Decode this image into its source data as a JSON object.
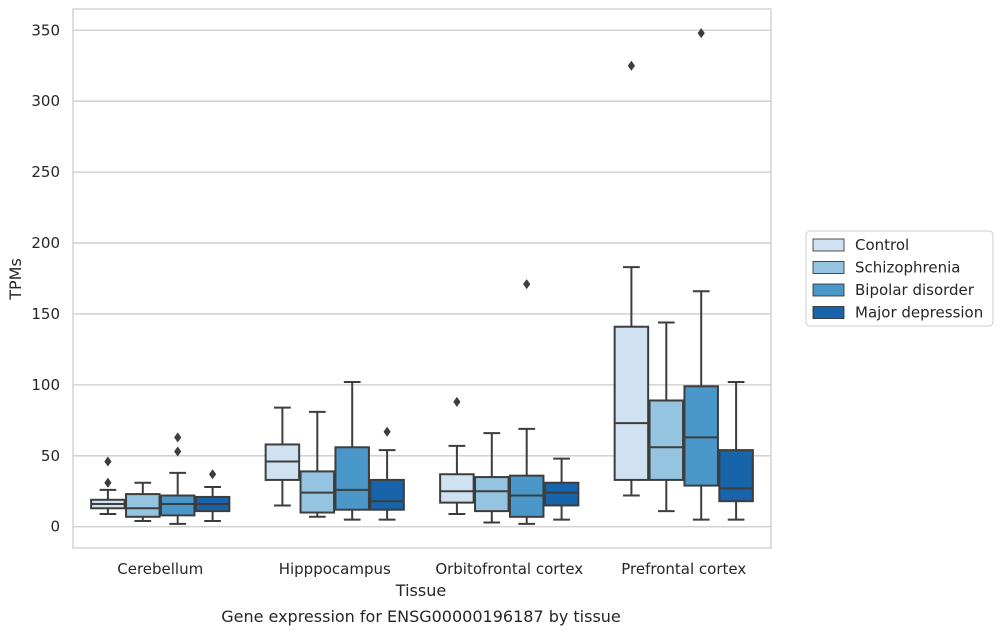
{
  "chart_data": {
    "type": "boxplot",
    "title": "",
    "caption": "Gene expression for ENSG00000196187 by tissue",
    "xlabel": "Tissue",
    "ylabel": "TPMs",
    "ylim": [
      -15,
      365
    ],
    "yticks": [
      0,
      50,
      100,
      150,
      200,
      250,
      300,
      350
    ],
    "grid": "horizontal",
    "legend_position": "right",
    "categories": [
      "Cerebellum",
      "Hipppocampus",
      "Orbitofrontal cortex",
      "Prefrontal cortex"
    ],
    "series": [
      {
        "name": "Control",
        "color": "#d0e1f2",
        "boxes": [
          {
            "whisker_low": 9,
            "q1": 13,
            "median": 16,
            "q3": 19,
            "whisker_high": 26,
            "outliers": [
              31,
              46
            ]
          },
          {
            "whisker_low": 15,
            "q1": 33,
            "median": 46,
            "q3": 58,
            "whisker_high": 84,
            "outliers": []
          },
          {
            "whisker_low": 9,
            "q1": 17,
            "median": 25,
            "q3": 37,
            "whisker_high": 57,
            "outliers": [
              88
            ]
          },
          {
            "whisker_low": 22,
            "q1": 33,
            "median": 73,
            "q3": 141,
            "whisker_high": 183,
            "outliers": [
              325
            ]
          }
        ]
      },
      {
        "name": "Schizophrenia",
        "color": "#94c4df",
        "boxes": [
          {
            "whisker_low": 4,
            "q1": 7,
            "median": 13,
            "q3": 23,
            "whisker_high": 31,
            "outliers": []
          },
          {
            "whisker_low": 7,
            "q1": 10,
            "median": 24,
            "q3": 39,
            "whisker_high": 81,
            "outliers": []
          },
          {
            "whisker_low": 3,
            "q1": 11,
            "median": 25,
            "q3": 35,
            "whisker_high": 66,
            "outliers": []
          },
          {
            "whisker_low": 11,
            "q1": 33,
            "median": 56,
            "q3": 89,
            "whisker_high": 144,
            "outliers": []
          }
        ]
      },
      {
        "name": "Bipolar disorder",
        "color": "#4a98c9",
        "boxes": [
          {
            "whisker_low": 2,
            "q1": 8,
            "median": 16,
            "q3": 22,
            "whisker_high": 38,
            "outliers": [
              53,
              63
            ]
          },
          {
            "whisker_low": 5,
            "q1": 12,
            "median": 26,
            "q3": 56,
            "whisker_high": 102,
            "outliers": []
          },
          {
            "whisker_low": 2,
            "q1": 7,
            "median": 22,
            "q3": 36,
            "whisker_high": 69,
            "outliers": [
              171
            ]
          },
          {
            "whisker_low": 5,
            "q1": 29,
            "median": 63,
            "q3": 99,
            "whisker_high": 166,
            "outliers": [
              348
            ]
          }
        ]
      },
      {
        "name": "Major depression",
        "color": "#1764ab",
        "boxes": [
          {
            "whisker_low": 4,
            "q1": 11,
            "median": 16,
            "q3": 21,
            "whisker_high": 28,
            "outliers": [
              37
            ]
          },
          {
            "whisker_low": 5,
            "q1": 12,
            "median": 18,
            "q3": 33,
            "whisker_high": 54,
            "outliers": [
              67
            ]
          },
          {
            "whisker_low": 5,
            "q1": 15,
            "median": 24,
            "q3": 31,
            "whisker_high": 48,
            "outliers": []
          },
          {
            "whisker_low": 5,
            "q1": 18,
            "median": 27,
            "q3": 54,
            "whisker_high": 102,
            "outliers": []
          }
        ]
      }
    ]
  }
}
